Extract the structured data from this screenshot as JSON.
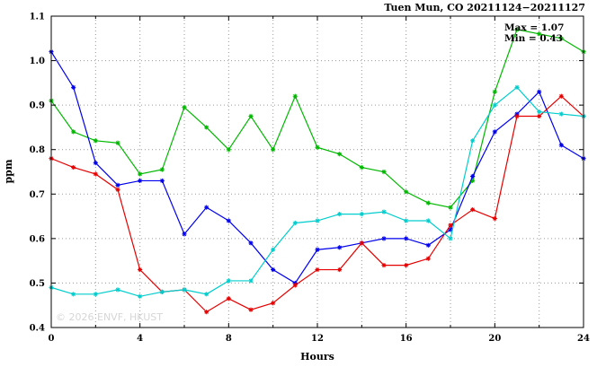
{
  "watermark": "© 2026 ENVF, HKUST",
  "annotations": {
    "max_label": "Max = 1.07",
    "min_label": "Min = 0.43"
  },
  "chart_data": {
    "type": "line",
    "title": "Tuen Mun, CO 20211124−20211127",
    "xlabel": "Hours",
    "ylabel": "ppm",
    "xlim": [
      0,
      24
    ],
    "ylim": [
      0.4,
      1.1
    ],
    "x_ticks": [
      0,
      4,
      8,
      12,
      16,
      20,
      24
    ],
    "y_ticks": [
      0.4,
      0.5,
      0.6,
      0.7,
      0.8,
      0.9,
      1.0,
      1.1
    ],
    "x_grid_step": 2,
    "grid": true,
    "legend": "none",
    "marker": "asterisk",
    "max": 1.07,
    "min": 0.43,
    "x": [
      0,
      1,
      2,
      3,
      4,
      5,
      6,
      7,
      8,
      9,
      10,
      11,
      12,
      13,
      14,
      15,
      16,
      17,
      18,
      19,
      20,
      21,
      22,
      23,
      24
    ],
    "series": [
      {
        "name": "series-green",
        "color": "#00b800",
        "values": [
          0.91,
          0.84,
          0.82,
          0.815,
          0.745,
          0.755,
          0.895,
          0.85,
          0.8,
          0.875,
          0.8,
          0.92,
          0.805,
          0.79,
          0.76,
          0.75,
          0.705,
          0.68,
          0.67,
          0.73,
          0.93,
          1.07,
          1.06,
          1.05,
          1.02
        ]
      },
      {
        "name": "series-blue",
        "color": "#0000ee",
        "values": [
          1.02,
          0.94,
          0.77,
          0.72,
          0.73,
          0.73,
          0.61,
          0.67,
          0.64,
          0.59,
          0.53,
          0.5,
          0.575,
          0.58,
          0.59,
          0.6,
          0.6,
          0.585,
          0.62,
          0.74,
          0.84,
          0.88,
          0.93,
          0.81,
          0.78
        ]
      },
      {
        "name": "series-red",
        "color": "#e60000",
        "values": [
          0.78,
          0.76,
          0.745,
          0.71,
          0.53,
          0.48,
          0.485,
          0.435,
          0.465,
          0.44,
          0.455,
          0.495,
          0.53,
          0.53,
          0.59,
          0.54,
          0.54,
          0.555,
          0.63,
          0.665,
          0.645,
          0.875,
          0.875,
          0.92,
          0.875
        ]
      },
      {
        "name": "series-cyan",
        "color": "#00cdcd",
        "values": [
          0.49,
          0.475,
          0.475,
          0.485,
          0.47,
          0.48,
          0.485,
          0.475,
          0.505,
          0.505,
          0.575,
          0.635,
          0.64,
          0.655,
          0.655,
          0.66,
          0.64,
          0.64,
          0.6,
          0.82,
          0.9,
          0.94,
          0.885,
          0.88,
          0.875
        ]
      }
    ]
  }
}
